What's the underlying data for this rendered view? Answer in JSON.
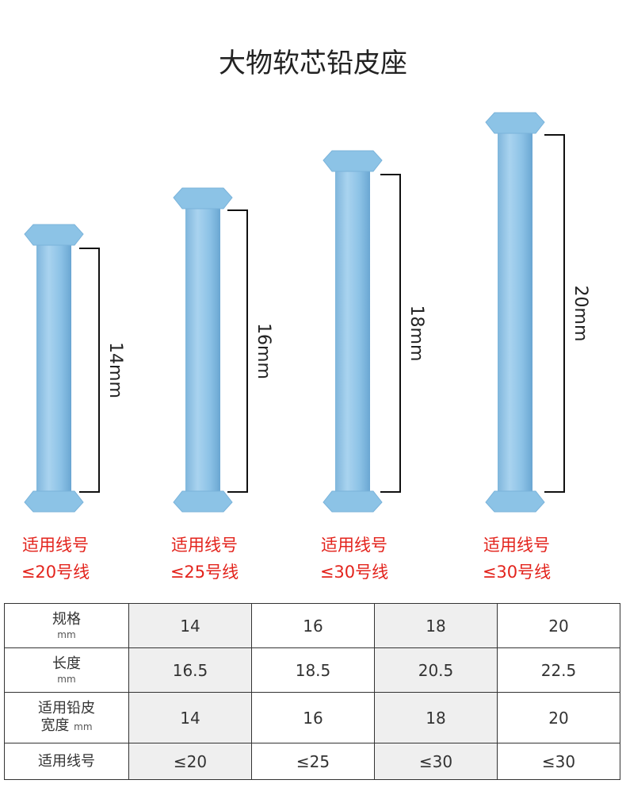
{
  "header": {
    "title": "大物软芯铅皮座"
  },
  "products": [
    {
      "length_label": "14mm",
      "caption": [
        "适用线号",
        "≤20号线"
      ]
    },
    {
      "length_label": "16mm",
      "caption": [
        "适用线号",
        "≤25号线"
      ]
    },
    {
      "length_label": "18mm",
      "caption": [
        "适用线号",
        "≤30号线"
      ]
    },
    {
      "length_label": "20mm",
      "caption": [
        "适用线号",
        "≤30号线"
      ]
    }
  ],
  "table": {
    "rows": [
      {
        "label": [
          "规格"
        ],
        "unit": "mm",
        "cells": [
          "14",
          "16",
          "18",
          "20"
        ]
      },
      {
        "label": [
          "长度"
        ],
        "unit": "mm",
        "cells": [
          "16.5",
          "18.5",
          "20.5",
          "22.5"
        ]
      },
      {
        "label": [
          "适用铅皮",
          "宽度"
        ],
        "unit": "mm",
        "cells": [
          "14",
          "16",
          "18",
          "20"
        ]
      },
      {
        "label": [
          "适用线号"
        ],
        "cells": [
          "≤20",
          "≤25",
          "≤30",
          "≤30"
        ]
      }
    ]
  }
}
